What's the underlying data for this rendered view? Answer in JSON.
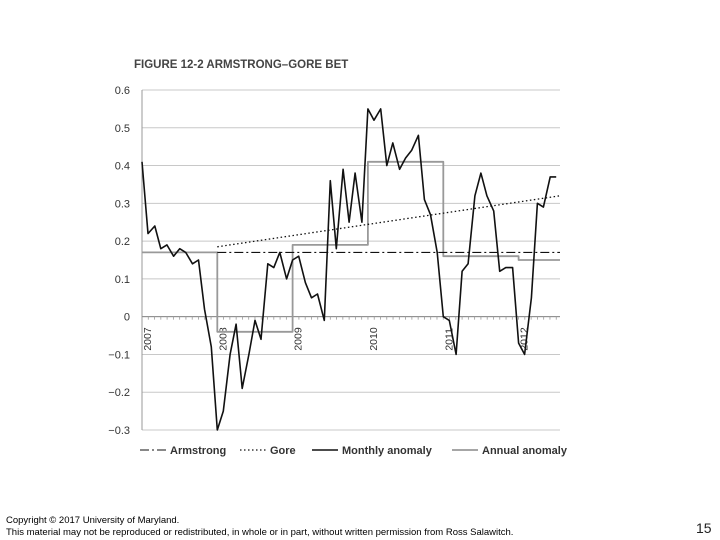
{
  "footer": {
    "copyright": "Copyright © 2017 University of Maryland.",
    "notice": "This material may not be reproduced or redistributed, in whole or in part, without written permission from Ross Salawitch.",
    "page_number": "15"
  },
  "chart_data": {
    "type": "line",
    "title": "FIGURE 12-2 ARMSTRONG–GORE BET",
    "xlabel": "",
    "ylabel": "",
    "xlim": [
      2007,
      2012.55
    ],
    "ylim": [
      -0.3,
      0.6
    ],
    "yticks": [
      0.6,
      0.5,
      0.4,
      0.3,
      0.2,
      0.1,
      0,
      -0.1,
      -0.2,
      -0.3
    ],
    "ytick_labels": [
      "0.6",
      "0.5",
      "0.4",
      "0.3",
      "0.2",
      "0.1",
      "0",
      "−0.1",
      "−0.2",
      "−0.3"
    ],
    "year_labels": [
      "2007",
      "2008",
      "2009",
      "2010",
      "2011",
      "2012"
    ],
    "grid": true,
    "legend_position": "bottom",
    "colors": {
      "armstrong": "#111111",
      "gore": "#111111",
      "monthly": "#111111",
      "annual": "#999999",
      "grid": "#c8c8c8"
    },
    "series": [
      {
        "name": "Armstrong",
        "style": "dashdot",
        "x": [
          2008.0,
          2012.55
        ],
        "y": [
          0.17,
          0.17
        ]
      },
      {
        "name": "Gore",
        "style": "dotted",
        "x": [
          2008.0,
          2012.55
        ],
        "y": [
          0.185,
          0.32
        ]
      },
      {
        "name": "Monthly anomaly",
        "style": "solid",
        "x": [
          2007.0,
          2007.08,
          2007.17,
          2007.25,
          2007.33,
          2007.42,
          2007.5,
          2007.58,
          2007.67,
          2007.75,
          2007.83,
          2007.92,
          2008.0,
          2008.08,
          2008.17,
          2008.25,
          2008.33,
          2008.42,
          2008.5,
          2008.58,
          2008.67,
          2008.75,
          2008.83,
          2008.92,
          2009.0,
          2009.08,
          2009.17,
          2009.25,
          2009.33,
          2009.42,
          2009.5,
          2009.58,
          2009.67,
          2009.75,
          2009.83,
          2009.92,
          2010.0,
          2010.08,
          2010.17,
          2010.25,
          2010.33,
          2010.42,
          2010.5,
          2010.58,
          2010.67,
          2010.75,
          2010.83,
          2010.92,
          2011.0,
          2011.08,
          2011.17,
          2011.25,
          2011.33,
          2011.42,
          2011.5,
          2011.58,
          2011.67,
          2011.75,
          2011.83,
          2011.92,
          2012.0,
          2012.08,
          2012.17,
          2012.25,
          2012.33,
          2012.42,
          2012.5
        ],
        "y": [
          0.41,
          0.22,
          0.24,
          0.18,
          0.19,
          0.16,
          0.18,
          0.17,
          0.14,
          0.15,
          0.02,
          -0.08,
          -0.3,
          -0.25,
          -0.1,
          -0.02,
          -0.19,
          -0.1,
          -0.01,
          -0.06,
          0.14,
          0.13,
          0.17,
          0.1,
          0.15,
          0.16,
          0.09,
          0.05,
          0.06,
          -0.01,
          0.36,
          0.18,
          0.39,
          0.25,
          0.38,
          0.25,
          0.55,
          0.52,
          0.55,
          0.4,
          0.46,
          0.39,
          0.42,
          0.44,
          0.48,
          0.31,
          0.27,
          0.17,
          0.0,
          -0.01,
          -0.1,
          0.12,
          0.14,
          0.32,
          0.38,
          0.32,
          0.28,
          0.12,
          0.13,
          0.13,
          -0.07,
          -0.1,
          0.05,
          0.3,
          0.29,
          0.37,
          0.37
        ]
      },
      {
        "name": "Annual anomaly",
        "style": "step",
        "x": [
          2007.0,
          2008.0,
          2008.0,
          2009.0,
          2009.0,
          2010.0,
          2010.0,
          2011.0,
          2011.0,
          2012.0,
          2012.0,
          2012.55
        ],
        "y": [
          0.17,
          0.17,
          -0.04,
          -0.04,
          0.19,
          0.19,
          0.41,
          0.41,
          0.16,
          0.16,
          0.15,
          0.15
        ]
      }
    ]
  }
}
